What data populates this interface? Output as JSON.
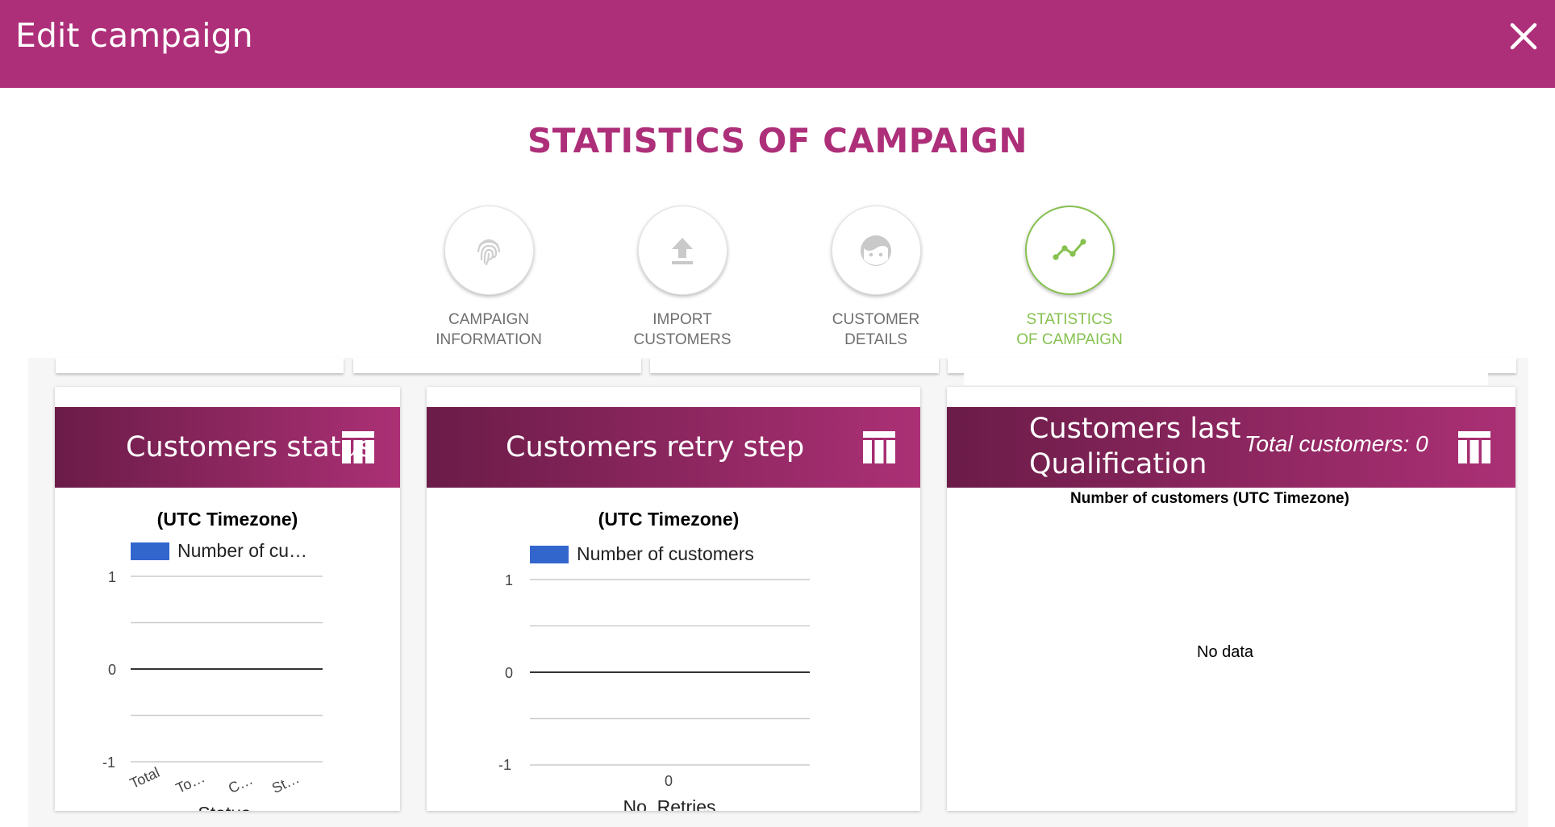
{
  "header": {
    "title": "Edit campaign",
    "close_icon": "close-icon"
  },
  "page_title": "STATISTICS OF CAMPAIGN",
  "stepper": [
    {
      "line1": "CAMPAIGN",
      "line2": "INFORMATION",
      "icon": "fingerprint-icon",
      "active": false
    },
    {
      "line1": "IMPORT",
      "line2": "CUSTOMERS",
      "icon": "upload-icon",
      "active": false
    },
    {
      "line1": "CUSTOMER",
      "line2": "DETAILS",
      "icon": "face-icon",
      "active": false
    },
    {
      "line1": "STATISTICS",
      "line2": "OF CAMPAIGN",
      "icon": "chart-line-icon",
      "active": true
    }
  ],
  "colors": {
    "brand": "#ae2f79",
    "active": "#86c150",
    "series": "#3366cc"
  },
  "cards": {
    "status": {
      "title": "Customers status",
      "chart_title": "(UTC Timezone)",
      "legend": "Number of cu…",
      "xlabel": "Status",
      "y_ticks": [
        "1",
        "0",
        "-1"
      ],
      "x_ticks": [
        "Total",
        "To…",
        "C…",
        "St…"
      ]
    },
    "retry": {
      "title": "Customers retry step",
      "chart_title": "(UTC Timezone)",
      "legend": "Number of customers",
      "xlabel": "No. Retries",
      "y_ticks": [
        "1",
        "0",
        "-1"
      ],
      "x_ticks": [
        "0"
      ]
    },
    "qualification": {
      "title_line1": "Customers last",
      "title_line2": "Qualification",
      "total": "Total customers: 0",
      "chart_title": "Number of customers (UTC Timezone)",
      "no_data": "No data"
    }
  },
  "chart_data": [
    {
      "type": "bar",
      "title": "(UTC Timezone)",
      "xlabel": "Status",
      "ylabel": "",
      "categories": [
        "Total",
        "To…",
        "C…",
        "St…"
      ],
      "series": [
        {
          "name": "Number of cu…",
          "values": [
            0,
            0,
            0,
            0
          ]
        }
      ],
      "ylim": [
        -1,
        1
      ],
      "grid": true,
      "legend": "top"
    },
    {
      "type": "bar",
      "title": "(UTC Timezone)",
      "xlabel": "No. Retries",
      "ylabel": "",
      "categories": [
        "0"
      ],
      "series": [
        {
          "name": "Number of customers",
          "values": [
            0
          ]
        }
      ],
      "ylim": [
        -1,
        1
      ],
      "grid": true,
      "legend": "top"
    }
  ]
}
